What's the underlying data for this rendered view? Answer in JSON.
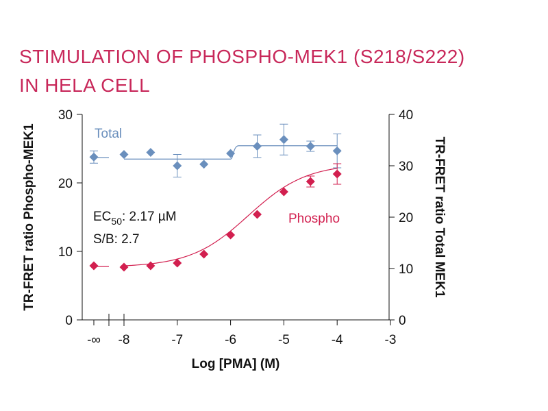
{
  "title": {
    "line1": "STIMULATION OF PHOSPHO-MEK1 (S218/S222)",
    "line2": "IN HELA CELL"
  },
  "colors": {
    "title": "#c8285a",
    "phospho": "#d21f4f",
    "total": "#6a8fbd",
    "axis": "#111111"
  },
  "annotations": {
    "ec50_prefix": "EC",
    "ec50_sub": "50",
    "ec50_value": ": 2.17 µM",
    "sb": "S/B: 2.7"
  },
  "chart_data": {
    "type": "scatter",
    "xlabel": "Log [PMA] (M)",
    "ylabel_left": "TR-FRET ratio Phospho-MEK1",
    "ylabel_right": "TR-FRET ratio Total MEK1",
    "xlim": [
      -9,
      -3
    ],
    "ylim_left": [
      0,
      30
    ],
    "ylim_right": [
      0,
      40
    ],
    "x_ticks": [
      "-∞",
      "-8",
      "-7",
      "-6",
      "-5",
      "-4",
      "-3"
    ],
    "y_left_ticks": [
      0,
      10,
      20,
      30
    ],
    "y_right_ticks": [
      0,
      10,
      20,
      30,
      40
    ],
    "axis_break": true,
    "series": [
      {
        "name": "Total",
        "axis": "right",
        "marker": "diamond",
        "fit": "step",
        "points": [
          {
            "x": "-∞",
            "y": 31.7,
            "err": 1.2
          },
          {
            "x": -8.0,
            "y": 32.2,
            "err": 0.0
          },
          {
            "x": -7.5,
            "y": 32.6,
            "err": 0.0
          },
          {
            "x": -7.0,
            "y": 30.0,
            "err": 2.2
          },
          {
            "x": -6.5,
            "y": 30.3,
            "err": 0.0
          },
          {
            "x": -6.0,
            "y": 32.4,
            "err": 0.0
          },
          {
            "x": -5.5,
            "y": 33.8,
            "err": 2.2
          },
          {
            "x": -5.0,
            "y": 35.1,
            "err": 3.0
          },
          {
            "x": -4.5,
            "y": 33.8,
            "err": 1.0
          },
          {
            "x": -4.0,
            "y": 32.9,
            "err": 3.3
          }
        ]
      },
      {
        "name": "Phospho",
        "axis": "left",
        "marker": "diamond",
        "fit": "sigmoid",
        "points": [
          {
            "x": "-∞",
            "y": 7.9,
            "err": 0.0
          },
          {
            "x": -8.0,
            "y": 7.7,
            "err": 0.0
          },
          {
            "x": -7.5,
            "y": 7.9,
            "err": 0.0
          },
          {
            "x": -7.0,
            "y": 8.3,
            "err": 0.0
          },
          {
            "x": -6.5,
            "y": 9.6,
            "err": 0.0
          },
          {
            "x": -6.0,
            "y": 12.4,
            "err": 0.0
          },
          {
            "x": -5.5,
            "y": 15.4,
            "err": 0.0
          },
          {
            "x": -5.0,
            "y": 18.7,
            "err": 0.0
          },
          {
            "x": -4.5,
            "y": 20.2,
            "err": 0.8
          },
          {
            "x": -4.0,
            "y": 21.3,
            "err": 1.5
          }
        ]
      }
    ]
  }
}
